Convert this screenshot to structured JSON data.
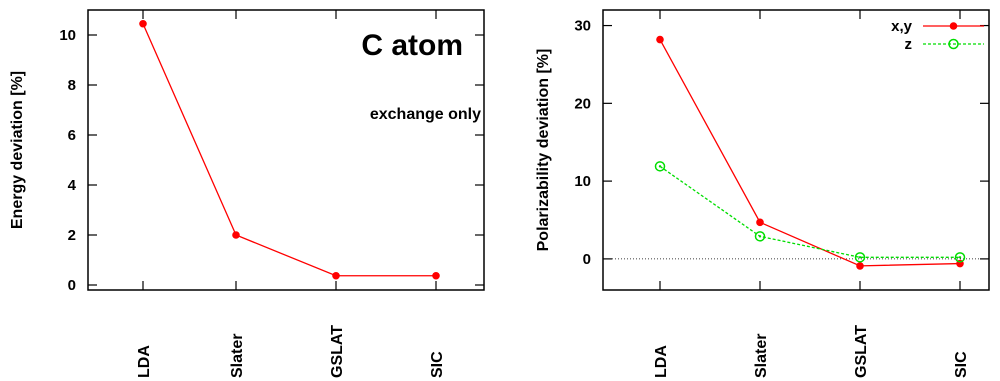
{
  "chart_data": [
    {
      "type": "line",
      "title": "C atom",
      "annotation": "exchange only",
      "ylabel": "Energy deviation [%]",
      "xlabel": "",
      "categories": [
        "LDA",
        "Slater",
        "GSLAT",
        "SIC"
      ],
      "ylim": [
        -0.2,
        11
      ],
      "yticks": [
        0,
        2,
        4,
        6,
        8,
        10
      ],
      "grid": false,
      "series": [
        {
          "values": [
            10.45,
            2.0,
            0.37,
            0.37
          ],
          "color": "#ff0000",
          "marker": "filled-circle",
          "line": "solid"
        }
      ]
    },
    {
      "type": "line",
      "title": "",
      "ylabel": "Polarizability deviation [%]",
      "xlabel": "",
      "categories": [
        "LDA",
        "Slater",
        "GSLAT",
        "SIC"
      ],
      "ylim": [
        -4,
        32
      ],
      "yticks": [
        0,
        10,
        20,
        30
      ],
      "zero_line": true,
      "grid": false,
      "legend": "top-right",
      "series": [
        {
          "name": "x,y",
          "values": [
            28.2,
            4.7,
            -0.9,
            -0.6
          ],
          "color": "#ff0000",
          "marker": "filled-circle",
          "line": "solid"
        },
        {
          "name": "z",
          "values": [
            11.9,
            2.9,
            0.2,
            0.2
          ],
          "color": "#00dd00",
          "marker": "open-circle",
          "line": "dashed"
        }
      ]
    }
  ]
}
